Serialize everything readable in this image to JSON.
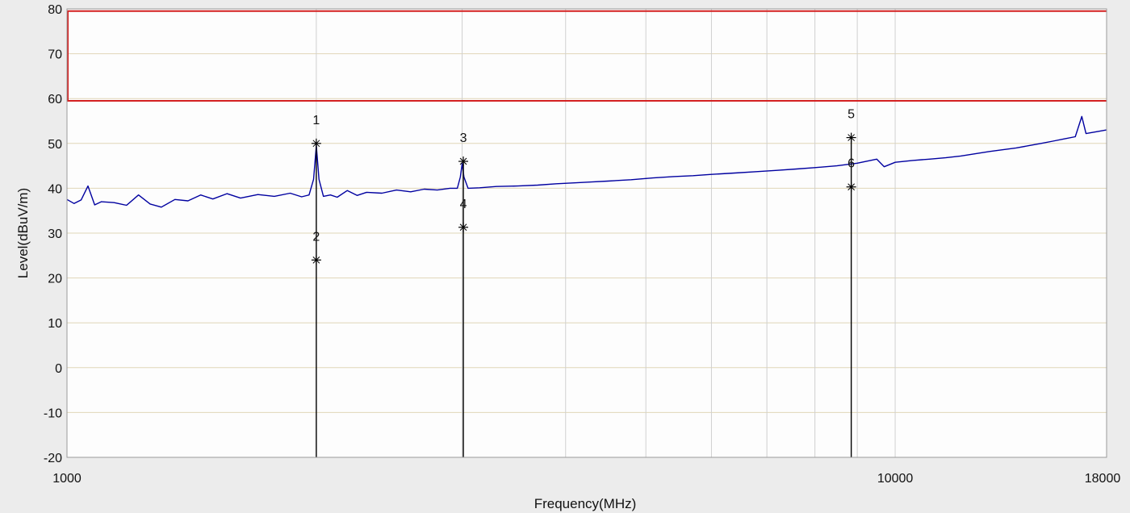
{
  "chart_data": {
    "type": "line",
    "title": "",
    "xlabel": "Frequency(MHz)",
    "ylabel": "Level(dBuV/m)",
    "x_scale": "log",
    "xlim": [
      1000,
      18000
    ],
    "ylim": [
      -20,
      80
    ],
    "x_ticks": [
      {
        "value": 1000,
        "label": "1000"
      },
      {
        "value": 10000,
        "label": "10000"
      },
      {
        "value": 18000,
        "label": "18000"
      }
    ],
    "y_ticks": [
      {
        "value": -20,
        "label": "-20"
      },
      {
        "value": -10,
        "label": "-10"
      },
      {
        "value": 0,
        "label": "0"
      },
      {
        "value": 10,
        "label": "10"
      },
      {
        "value": 20,
        "label": "20"
      },
      {
        "value": 30,
        "label": "30"
      },
      {
        "value": 40,
        "label": "40"
      },
      {
        "value": 50,
        "label": "50"
      },
      {
        "value": 60,
        "label": "60"
      },
      {
        "value": 70,
        "label": "70"
      },
      {
        "value": 80,
        "label": "80"
      }
    ],
    "x_gridlines": [
      2000,
      3000,
      4000,
      5000,
      6000,
      7000,
      8000,
      9000,
      10000
    ],
    "grid": true,
    "limit_lines": [
      {
        "level": 79.5,
        "color": "#d42020"
      },
      {
        "level": 59.5,
        "color": "#d42020"
      }
    ],
    "series": [
      {
        "color": "#0000a0",
        "points": [
          [
            1000,
            37.5
          ],
          [
            1020,
            36.6
          ],
          [
            1040,
            37.4
          ],
          [
            1060,
            40.5
          ],
          [
            1080,
            36.3
          ],
          [
            1100,
            37.0
          ],
          [
            1140,
            36.8
          ],
          [
            1180,
            36.2
          ],
          [
            1220,
            38.5
          ],
          [
            1260,
            36.5
          ],
          [
            1300,
            35.8
          ],
          [
            1350,
            37.5
          ],
          [
            1400,
            37.2
          ],
          [
            1450,
            38.5
          ],
          [
            1500,
            37.6
          ],
          [
            1560,
            38.8
          ],
          [
            1620,
            37.8
          ],
          [
            1700,
            38.6
          ],
          [
            1780,
            38.2
          ],
          [
            1860,
            38.9
          ],
          [
            1920,
            38.1
          ],
          [
            1960,
            38.5
          ],
          [
            1985,
            42.0
          ],
          [
            2000,
            49.5
          ],
          [
            2015,
            42.0
          ],
          [
            2040,
            38.2
          ],
          [
            2080,
            38.5
          ],
          [
            2120,
            38.0
          ],
          [
            2180,
            39.5
          ],
          [
            2240,
            38.4
          ],
          [
            2300,
            39.1
          ],
          [
            2400,
            38.9
          ],
          [
            2500,
            39.6
          ],
          [
            2600,
            39.2
          ],
          [
            2700,
            39.8
          ],
          [
            2800,
            39.6
          ],
          [
            2900,
            40.0
          ],
          [
            2960,
            40.0
          ],
          [
            2985,
            42.5
          ],
          [
            3000,
            45.5
          ],
          [
            3015,
            42.5
          ],
          [
            3050,
            40.0
          ],
          [
            3150,
            40.1
          ],
          [
            3300,
            40.4
          ],
          [
            3500,
            40.5
          ],
          [
            3700,
            40.7
          ],
          [
            3900,
            41.0
          ],
          [
            4100,
            41.2
          ],
          [
            4300,
            41.4
          ],
          [
            4500,
            41.6
          ],
          [
            4800,
            41.9
          ],
          [
            5100,
            42.3
          ],
          [
            5400,
            42.6
          ],
          [
            5700,
            42.8
          ],
          [
            6000,
            43.1
          ],
          [
            6400,
            43.4
          ],
          [
            6800,
            43.7
          ],
          [
            7200,
            44.0
          ],
          [
            7600,
            44.3
          ],
          [
            8000,
            44.6
          ],
          [
            8500,
            45.0
          ],
          [
            9000,
            45.6
          ],
          [
            9500,
            46.5
          ],
          [
            9700,
            44.8
          ],
          [
            10000,
            45.8
          ],
          [
            10500,
            46.2
          ],
          [
            11000,
            46.5
          ],
          [
            11500,
            46.8
          ],
          [
            12000,
            47.2
          ],
          [
            12500,
            47.7
          ],
          [
            13000,
            48.2
          ],
          [
            13500,
            48.6
          ],
          [
            14000,
            49.0
          ],
          [
            14500,
            49.5
          ],
          [
            15000,
            50.0
          ],
          [
            15500,
            50.5
          ],
          [
            16000,
            51.0
          ],
          [
            16500,
            51.5
          ],
          [
            16800,
            56.0
          ],
          [
            17000,
            52.2
          ],
          [
            17500,
            52.6
          ],
          [
            18000,
            53.0
          ]
        ]
      }
    ],
    "markers": [
      {
        "label": "1",
        "freq": 2000,
        "level": 50.0,
        "symbol": "star"
      },
      {
        "label": "2",
        "freq": 2000,
        "level": 24.0,
        "symbol": "star"
      },
      {
        "label": "3",
        "freq": 3010,
        "level": 46.0,
        "symbol": "star"
      },
      {
        "label": "4",
        "freq": 3010,
        "level": 31.3,
        "symbol": "star"
      },
      {
        "label": "5",
        "freq": 8850,
        "level": 51.3,
        "symbol": "star"
      },
      {
        "label": "6",
        "freq": 8850,
        "level": 40.3,
        "symbol": "star"
      }
    ]
  }
}
